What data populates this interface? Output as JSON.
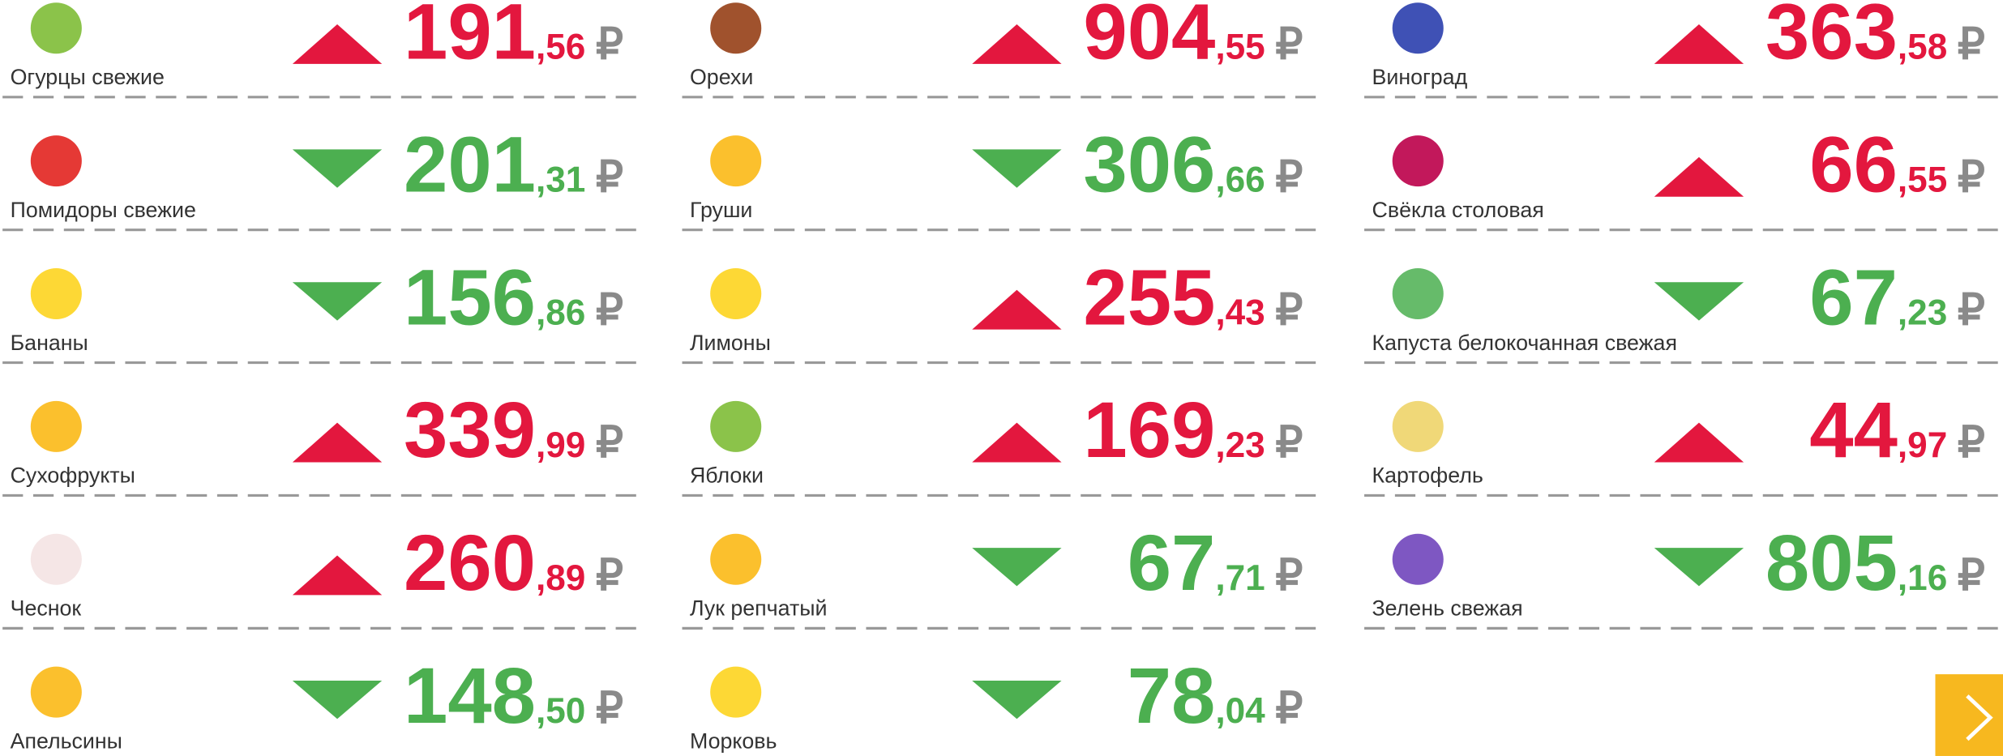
{
  "currency": "₽",
  "columns": [
    {
      "items": [
        {
          "name": "Огурцы свежие",
          "trend": "up",
          "rub": "191",
          "kop": ",56"
        },
        {
          "name": "Помидоры свежие",
          "trend": "down",
          "rub": "201",
          "kop": ",31"
        },
        {
          "name": "Бананы",
          "trend": "down",
          "rub": "156",
          "kop": ",86"
        },
        {
          "name": "Сухофрукты",
          "trend": "up",
          "rub": "339",
          "kop": ",99"
        },
        {
          "name": "Чеснок",
          "trend": "up",
          "rub": "260",
          "kop": ",89"
        },
        {
          "name": "Апельсины",
          "trend": "down",
          "rub": "148",
          "kop": ",50"
        }
      ]
    },
    {
      "items": [
        {
          "name": "Орехи",
          "trend": "up",
          "rub": "904",
          "kop": ",55"
        },
        {
          "name": "Груши",
          "trend": "down",
          "rub": "306",
          "kop": ",66"
        },
        {
          "name": "Лимоны",
          "trend": "up",
          "rub": "255",
          "kop": ",43"
        },
        {
          "name": "Яблоки",
          "trend": "up",
          "rub": "169",
          "kop": ",23"
        },
        {
          "name": "Лук репчатый",
          "trend": "down",
          "rub": "67",
          "kop": ",71"
        },
        {
          "name": "Морковь",
          "trend": "down",
          "rub": "78",
          "kop": ",04"
        }
      ]
    },
    {
      "items": [
        {
          "name": "Виноград",
          "trend": "up",
          "rub": "363",
          "kop": ",58"
        },
        {
          "name": "Свёкла столовая",
          "trend": "up",
          "rub": "66",
          "kop": ",55"
        },
        {
          "name": "Капуста белокочанная свежая",
          "trend": "down",
          "rub": "67",
          "kop": ",23"
        },
        {
          "name": "Картофель",
          "trend": "up",
          "rub": "44",
          "kop": ",97"
        },
        {
          "name": "Зелень свежая",
          "trend": "down",
          "rub": "805",
          "kop": ",16"
        }
      ]
    }
  ]
}
